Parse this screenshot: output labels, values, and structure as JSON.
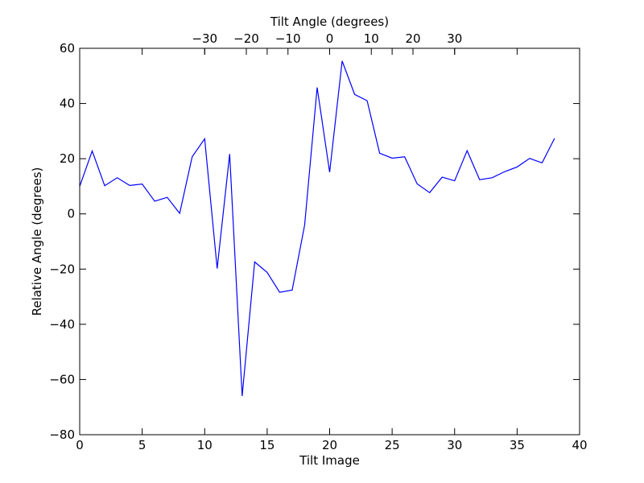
{
  "chart_data": {
    "type": "line",
    "title": "",
    "xlabel": "Tilt Image",
    "ylabel": "Relative Angle (degrees)",
    "top_xlabel": "Tilt Angle (degrees)",
    "xlim": [
      0,
      40
    ],
    "ylim": [
      -80,
      60
    ],
    "top_xlim_map": {
      "image_at_zero_angle": 20,
      "angle_per_image": 3
    },
    "x_ticks": [
      0,
      5,
      10,
      15,
      20,
      25,
      30,
      35,
      40
    ],
    "y_ticks": [
      -80,
      -60,
      -40,
      -20,
      0,
      20,
      40,
      60
    ],
    "top_ticks": [
      -30,
      -20,
      -10,
      0,
      10,
      20,
      30
    ],
    "x_tick_labels": [
      "0",
      "5",
      "10",
      "15",
      "20",
      "25",
      "30",
      "35",
      "40"
    ],
    "y_tick_labels": [
      "−80",
      "−60",
      "−40",
      "−20",
      "0",
      "20",
      "40",
      "60"
    ],
    "top_tick_labels": [
      "−30",
      "−20",
      "−10",
      "0",
      "10",
      "20",
      "30"
    ],
    "grid": false,
    "series": [
      {
        "color": "#0000ff",
        "x": [
          0,
          1,
          2,
          3,
          4,
          5,
          6,
          7,
          8,
          9,
          10,
          11,
          12,
          13,
          14,
          15,
          16,
          17,
          18,
          19,
          20,
          21,
          22,
          23,
          24,
          25,
          26,
          27,
          28,
          29,
          30,
          31,
          32,
          33,
          34,
          35,
          36,
          37,
          38
        ],
        "values": [
          10,
          22.8,
          10.2,
          13.1,
          10.3,
          10.8,
          4.6,
          6.0,
          0.2,
          20.7,
          27.2,
          -19.8,
          21.7,
          -66.0,
          -17.4,
          -21.2,
          -28.4,
          -27.6,
          -4.0,
          45.8,
          15.1,
          55.4,
          43.3,
          41.0,
          22.0,
          20.2,
          20.7,
          10.9,
          7.7,
          13.3,
          12.0,
          22.9,
          12.4,
          13.1,
          15.3,
          17.0,
          20.1,
          18.5,
          27.4
        ]
      }
    ]
  }
}
